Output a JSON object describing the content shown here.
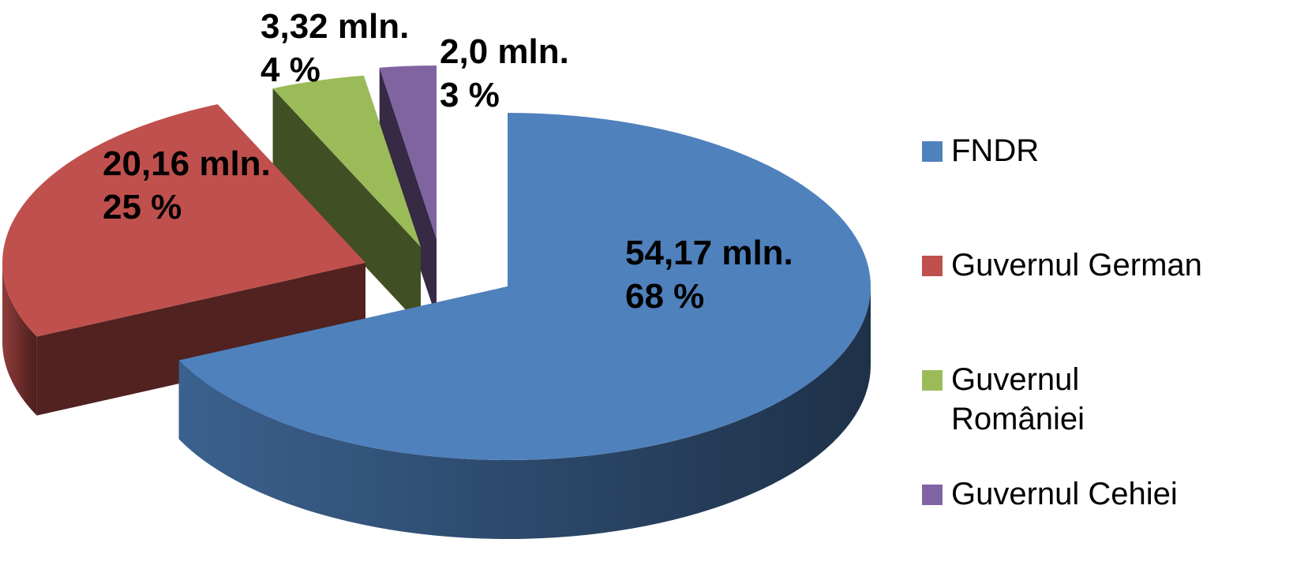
{
  "chart_data": {
    "type": "pie",
    "style": "3d-exploded",
    "legend_position": "right",
    "series": [
      {
        "name": "FNDR",
        "value": 54.17,
        "percent": 68,
        "color": "#4F81BD",
        "label_line1": "54,17 mln.",
        "label_line2": "68 %",
        "legend_lines": [
          "FNDR"
        ]
      },
      {
        "name": "Guvernul German",
        "value": 20.16,
        "percent": 25,
        "color": "#C0504D",
        "label_line1": "20,16 mln.",
        "label_line2": "25 %",
        "legend_lines": [
          "Guvernul German"
        ]
      },
      {
        "name": "Guvernul României",
        "value": 3.32,
        "percent": 4,
        "color": "#9BBB59",
        "label_line1": "3,32 mln.",
        "label_line2": "4 %",
        "legend_lines": [
          "Guvernul",
          "României"
        ]
      },
      {
        "name": "Guvernul Cehiei",
        "value": 2.0,
        "percent": 3,
        "color": "#8064A2",
        "label_line1": "2,0 mln.",
        "label_line2": "3 %",
        "legend_lines": [
          "Guvernul Cehiei"
        ]
      }
    ]
  }
}
